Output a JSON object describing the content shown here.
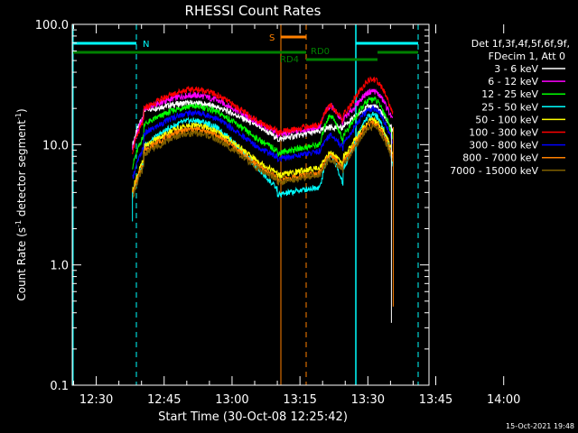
{
  "chart_data": {
    "type": "line",
    "title": "RHESSI Count Rates",
    "xlabel": "Start Time (30-Oct-08 12:25:42)",
    "ylabel_main": "Count Rate (s",
    "ylabel_sup1": "-1",
    "ylabel_mid": " detector segment",
    "ylabel_sup2": "-1",
    "ylabel_end": ")",
    "y_scale": "log",
    "ylim": [
      0.1,
      100.0
    ],
    "y_ticks": [
      {
        "value": 0.1,
        "label": "0.1"
      },
      {
        "value": 1.0,
        "label": "1.0"
      },
      {
        "value": 10.0,
        "label": "10.0"
      },
      {
        "value": 100.0,
        "label": "100.0"
      }
    ],
    "xlim_minutes": [
      24.7,
      103.5
    ],
    "x_ticks": [
      {
        "minute": 30,
        "label": "12:30"
      },
      {
        "minute": 45,
        "label": "12:45"
      },
      {
        "minute": 60,
        "label": "13:00"
      },
      {
        "minute": 75,
        "label": "13:15"
      },
      {
        "minute": 90,
        "label": "13:30"
      },
      {
        "minute": 105,
        "label": "13:45"
      },
      {
        "minute": 120,
        "label": "14:00"
      }
    ],
    "legend_header": [
      "Det 1f,3f,4f,5f,6f,9f,",
      "FDecim 1, Att 0"
    ],
    "series": [
      {
        "name": "3 - 6 keV",
        "color": "#ffffff",
        "start": 18.0,
        "p1": 22.5,
        "trough": 11.0,
        "bump": 14.0,
        "p2": 21.0,
        "end": 14.5
      },
      {
        "name": "6 - 12 keV",
        "color": "#ff00ff",
        "start": 17.0,
        "p1": 26.0,
        "trough": 12.0,
        "bump": 21.0,
        "p2": 28.0,
        "end": 20.0
      },
      {
        "name": "12 - 25 keV",
        "color": "#00ff00",
        "start": 12.0,
        "p1": 21.0,
        "trough": 8.5,
        "bump": 17.5,
        "p2": 24.0,
        "end": 16.0
      },
      {
        "name": "25 - 50 keV",
        "color": "#00ffff",
        "start": 7.0,
        "p1": 16.0,
        "trough": 3.8,
        "bump": 8.0,
        "p2": 18.0,
        "end": 12.0
      },
      {
        "name": "50 - 100 keV",
        "color": "#ffff00",
        "start": 7.5,
        "p1": 14.5,
        "trough": 5.5,
        "bump": 8.5,
        "p2": 16.0,
        "end": 12.0
      },
      {
        "name": "100 - 300 keV",
        "color": "#ff0000",
        "start": 16.0,
        "p1": 29.0,
        "trough": 12.5,
        "bump": 21.0,
        "p2": 35.0,
        "end": 25.0
      },
      {
        "name": "300 - 800 keV",
        "color": "#0000ff",
        "start": 9.5,
        "p1": 18.5,
        "trough": 7.5,
        "bump": 12.0,
        "p2": 20.0,
        "end": 14.0
      },
      {
        "name": "800 - 7000 keV",
        "color": "#ff8000",
        "start": 7.0,
        "p1": 13.5,
        "trough": 5.0,
        "bump": 8.0,
        "p2": 15.0,
        "end": 11.0
      },
      {
        "name": "7000 - 15000 keV",
        "color": "#806000",
        "start": 6.5,
        "p1": 12.5,
        "trough": 4.8,
        "bump": 7.5,
        "p2": 14.0,
        "end": 10.5
      }
    ],
    "flag_lines": [
      {
        "label": "N",
        "color": "#00ffff"
      },
      {
        "label": "S",
        "color": "#ff8000"
      },
      {
        "label": "RD0",
        "color": "#008000"
      },
      {
        "label": "RD4",
        "color": "#008000"
      }
    ],
    "footer_date": "15-Oct-2021 19:48"
  }
}
